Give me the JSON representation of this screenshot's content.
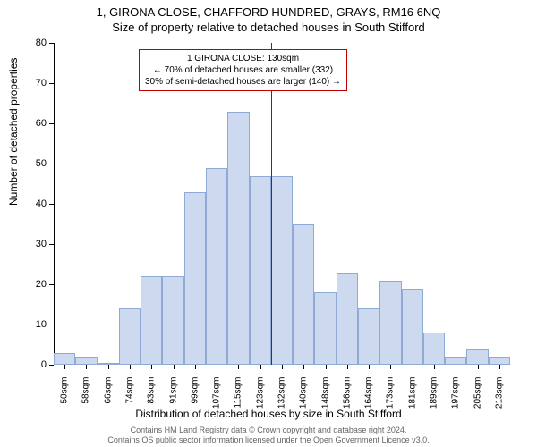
{
  "titles": {
    "line1": "1, GIRONA CLOSE, CHAFFORD HUNDRED, GRAYS, RM16 6NQ",
    "line2": "Size of property relative to detached houses in South Stifford"
  },
  "axes": {
    "ylabel": "Number of detached properties",
    "xlabel": "Distribution of detached houses by size in South Stifford",
    "ylim": [
      0,
      80
    ],
    "ytick_step": 10,
    "yticks": [
      0,
      10,
      20,
      30,
      40,
      50,
      60,
      70,
      80
    ],
    "xticks": [
      "50sqm",
      "58sqm",
      "66sqm",
      "74sqm",
      "83sqm",
      "91sqm",
      "99sqm",
      "107sqm",
      "115sqm",
      "123sqm",
      "132sqm",
      "140sqm",
      "148sqm",
      "156sqm",
      "164sqm",
      "173sqm",
      "181sqm",
      "189sqm",
      "197sqm",
      "205sqm",
      "213sqm"
    ]
  },
  "histogram": {
    "type": "histogram",
    "values": [
      3,
      2,
      0,
      14,
      22,
      22,
      43,
      49,
      63,
      47,
      47,
      35,
      18,
      23,
      14,
      21,
      19,
      8,
      2,
      4,
      2
    ],
    "bar_fill": "#cdd9ee",
    "bar_stroke": "#8faad4",
    "background_color": "#ffffff"
  },
  "reference_line": {
    "x_index_after": 10,
    "color": "#c00000"
  },
  "annotation": {
    "line1": "1 GIRONA CLOSE: 130sqm",
    "line2": "← 70% of detached houses are smaller (332)",
    "line3": "30% of semi-detached houses are larger (140) →",
    "border_color": "#c00000"
  },
  "footer": {
    "line1": "Contains HM Land Registry data © Crown copyright and database right 2024.",
    "line2": "Contains OS public sector information licensed under the Open Government Licence v3.0."
  },
  "style": {
    "title_fontsize": 13,
    "axis_label_fontsize": 12,
    "tick_label_fontsize": 11,
    "footer_fontsize": 9,
    "footer_color": "#646464"
  }
}
